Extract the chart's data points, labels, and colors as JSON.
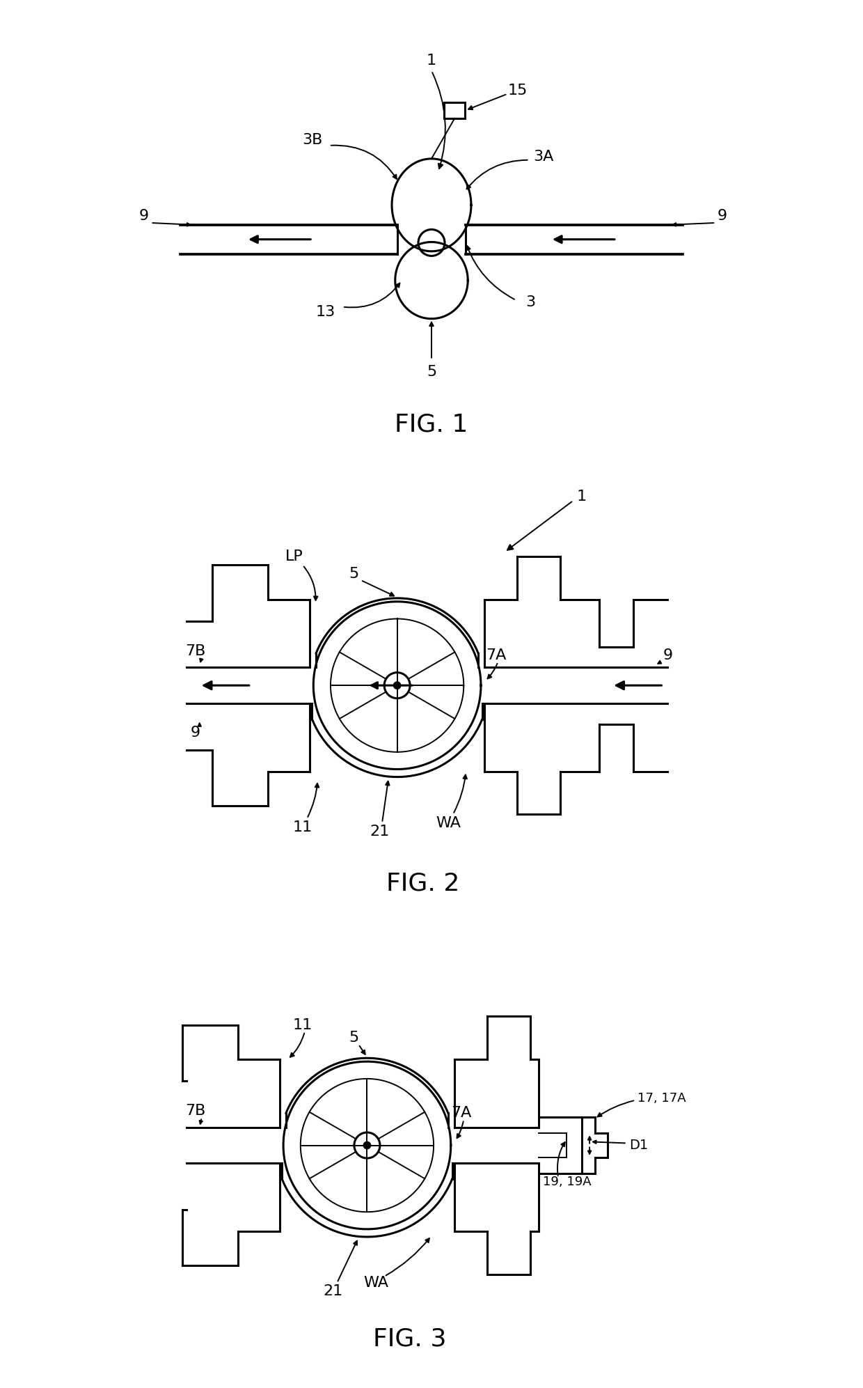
{
  "fig_labels": [
    "FIG. 1",
    "FIG. 2",
    "FIG. 3"
  ],
  "label_fontsize": 26,
  "annotation_fontsize": 16,
  "line_color": "#000000",
  "bg_color": "#ffffff",
  "line_width": 2.2,
  "thin_lw": 1.4
}
